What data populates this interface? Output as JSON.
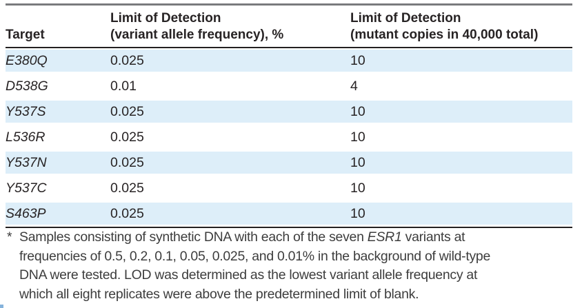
{
  "table": {
    "headers": [
      {
        "label": "Target"
      },
      {
        "line1": "Limit of Detection",
        "line2": "(variant allele frequency), %"
      },
      {
        "line1": "Limit of Detection",
        "line2": "(mutant copies in 40,000 total)"
      }
    ],
    "rows": [
      {
        "target": "E380Q",
        "vaf": "0.025",
        "copies": "10"
      },
      {
        "target": "D538G",
        "vaf": "0.01",
        "copies": "4"
      },
      {
        "target": "Y537S",
        "vaf": "0.025",
        "copies": "10"
      },
      {
        "target": "L536R",
        "vaf": "0.025",
        "copies": "10"
      },
      {
        "target": "Y537N",
        "vaf": "0.025",
        "copies": "10"
      },
      {
        "target": "Y537C",
        "vaf": "0.025",
        "copies": "10"
      },
      {
        "target": "S463P",
        "vaf": "0.025",
        "copies": "10"
      }
    ]
  },
  "footnote": {
    "marker": "*",
    "lines": [
      {
        "pre": "Samples consisting of synthetic DNA with each of the seven ",
        "italic": "ESR1",
        "post": " variants at"
      },
      {
        "text": "frequencies of 0.5, 0.2, 0.1, 0.05, 0.025, and 0.01% in the background of wild-type"
      },
      {
        "text": "DNA were tested. LOD was determined as the lowest variant allele frequency at"
      },
      {
        "text": "which all eight replicates were above the predetermined limit of blank."
      }
    ]
  },
  "colors": {
    "stripe_blue": "#ddeef9",
    "rule_gray": "#797a7d",
    "rule_dark": "#232021",
    "table_text": "#272324",
    "footnote_text": "#3d3d3d",
    "corner_artifact_blue": "#85b3dc"
  }
}
